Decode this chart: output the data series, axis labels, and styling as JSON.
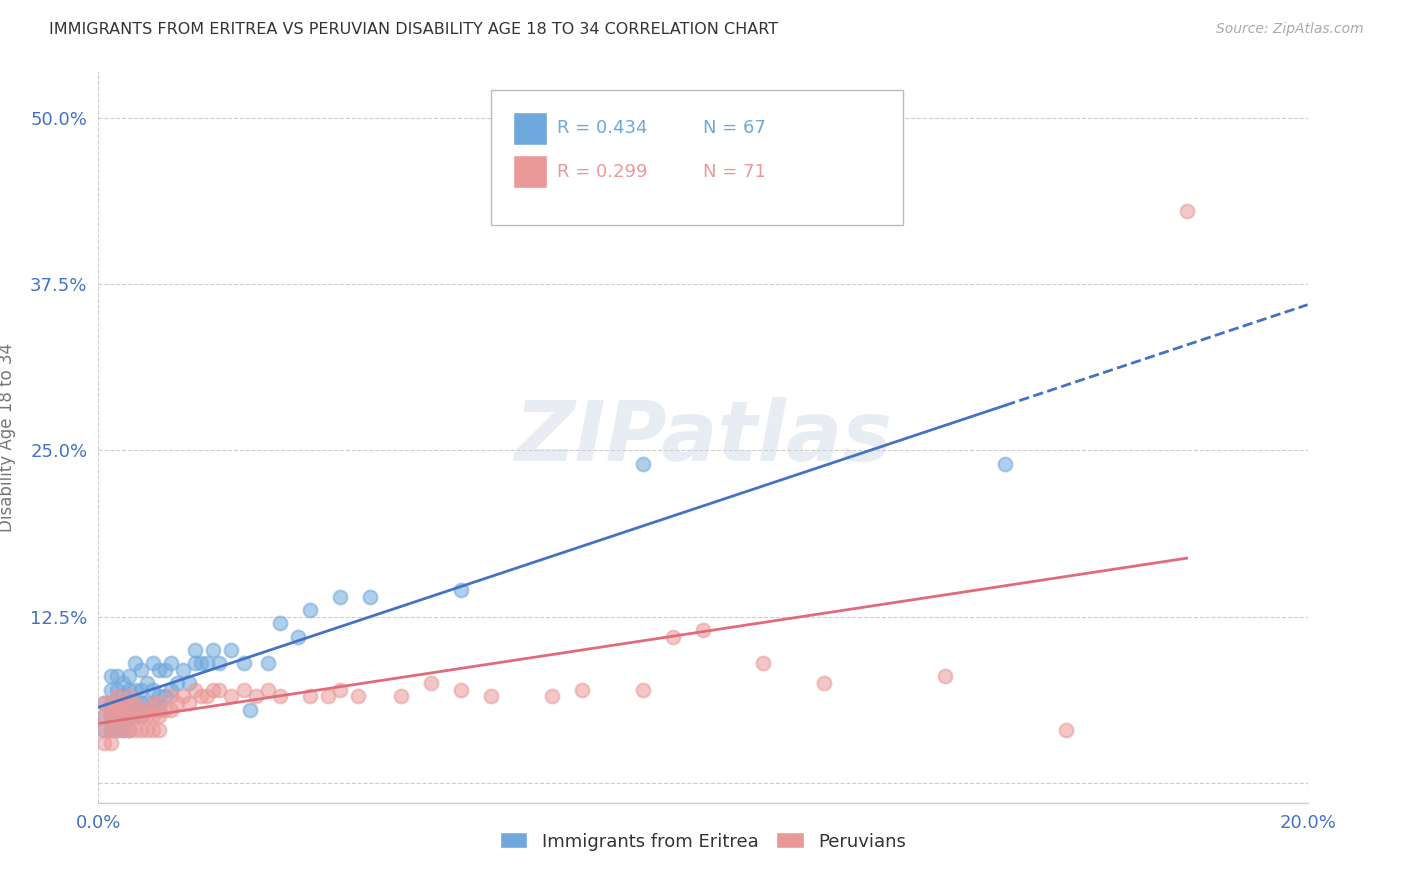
{
  "title": "IMMIGRANTS FROM ERITREA VS PERUVIAN DISABILITY AGE 18 TO 34 CORRELATION CHART",
  "source": "Source: ZipAtlas.com",
  "ylabel": "Disability Age 18 to 34",
  "xlim": [
    0.0,
    0.2
  ],
  "ylim": [
    -0.015,
    0.535
  ],
  "yticks": [
    0.0,
    0.125,
    0.25,
    0.375,
    0.5
  ],
  "ytick_labels": [
    "",
    "12.5%",
    "25.0%",
    "37.5%",
    "50.0%"
  ],
  "xticks": [
    0.0,
    0.2
  ],
  "xtick_labels": [
    "0.0%",
    "20.0%"
  ],
  "legend_r1": "R = 0.434",
  "legend_n1": "N = 67",
  "legend_r2": "R = 0.299",
  "legend_n2": "N = 71",
  "series1_color": "#6fa8dc",
  "series1_line_color": "#4472c4",
  "series2_color": "#ea9999",
  "series2_line_color": "#e06c7a",
  "series1_label": "Immigrants from Eritrea",
  "series2_label": "Peruvians",
  "watermark": "ZIPatlas",
  "background_color": "#ffffff",
  "grid_color": "#cccccc",
  "axis_label_color": "#4472c4",
  "tick_label_color": "#4472c4",
  "series1_x": [
    0.001,
    0.001,
    0.001,
    0.002,
    0.002,
    0.002,
    0.002,
    0.002,
    0.002,
    0.003,
    0.003,
    0.003,
    0.003,
    0.003,
    0.003,
    0.004,
    0.004,
    0.004,
    0.004,
    0.004,
    0.005,
    0.005,
    0.005,
    0.005,
    0.005,
    0.006,
    0.006,
    0.006,
    0.006,
    0.007,
    0.007,
    0.007,
    0.007,
    0.008,
    0.008,
    0.008,
    0.009,
    0.009,
    0.009,
    0.01,
    0.01,
    0.01,
    0.011,
    0.011,
    0.012,
    0.012,
    0.013,
    0.014,
    0.015,
    0.016,
    0.016,
    0.017,
    0.018,
    0.019,
    0.02,
    0.022,
    0.024,
    0.025,
    0.028,
    0.03,
    0.033,
    0.035,
    0.04,
    0.045,
    0.06,
    0.09,
    0.15
  ],
  "series1_y": [
    0.04,
    0.05,
    0.06,
    0.04,
    0.05,
    0.055,
    0.06,
    0.07,
    0.08,
    0.04,
    0.05,
    0.055,
    0.06,
    0.07,
    0.08,
    0.04,
    0.05,
    0.06,
    0.065,
    0.075,
    0.04,
    0.05,
    0.06,
    0.07,
    0.08,
    0.05,
    0.06,
    0.07,
    0.09,
    0.05,
    0.06,
    0.07,
    0.085,
    0.055,
    0.06,
    0.075,
    0.06,
    0.07,
    0.09,
    0.055,
    0.065,
    0.085,
    0.065,
    0.085,
    0.07,
    0.09,
    0.075,
    0.085,
    0.075,
    0.09,
    0.1,
    0.09,
    0.09,
    0.1,
    0.09,
    0.1,
    0.09,
    0.055,
    0.09,
    0.12,
    0.11,
    0.13,
    0.14,
    0.14,
    0.145,
    0.24,
    0.24
  ],
  "series2_x": [
    0.001,
    0.001,
    0.001,
    0.001,
    0.002,
    0.002,
    0.002,
    0.002,
    0.002,
    0.003,
    0.003,
    0.003,
    0.003,
    0.003,
    0.004,
    0.004,
    0.004,
    0.004,
    0.005,
    0.005,
    0.005,
    0.005,
    0.006,
    0.006,
    0.006,
    0.007,
    0.007,
    0.007,
    0.008,
    0.008,
    0.008,
    0.009,
    0.009,
    0.009,
    0.01,
    0.01,
    0.01,
    0.011,
    0.012,
    0.012,
    0.013,
    0.014,
    0.015,
    0.016,
    0.017,
    0.018,
    0.019,
    0.02,
    0.022,
    0.024,
    0.026,
    0.028,
    0.03,
    0.035,
    0.038,
    0.04,
    0.043,
    0.05,
    0.055,
    0.06,
    0.065,
    0.075,
    0.08,
    0.09,
    0.095,
    0.1,
    0.11,
    0.12,
    0.14,
    0.16,
    0.18
  ],
  "series2_y": [
    0.03,
    0.04,
    0.05,
    0.06,
    0.03,
    0.04,
    0.05,
    0.055,
    0.06,
    0.04,
    0.05,
    0.055,
    0.06,
    0.065,
    0.04,
    0.05,
    0.055,
    0.06,
    0.04,
    0.05,
    0.06,
    0.065,
    0.04,
    0.05,
    0.06,
    0.04,
    0.05,
    0.055,
    0.04,
    0.05,
    0.055,
    0.04,
    0.05,
    0.06,
    0.04,
    0.05,
    0.06,
    0.055,
    0.055,
    0.065,
    0.06,
    0.065,
    0.06,
    0.07,
    0.065,
    0.065,
    0.07,
    0.07,
    0.065,
    0.07,
    0.065,
    0.07,
    0.065,
    0.065,
    0.065,
    0.07,
    0.065,
    0.065,
    0.075,
    0.07,
    0.065,
    0.065,
    0.07,
    0.07,
    0.11,
    0.115,
    0.09,
    0.075,
    0.08,
    0.04,
    0.43
  ]
}
